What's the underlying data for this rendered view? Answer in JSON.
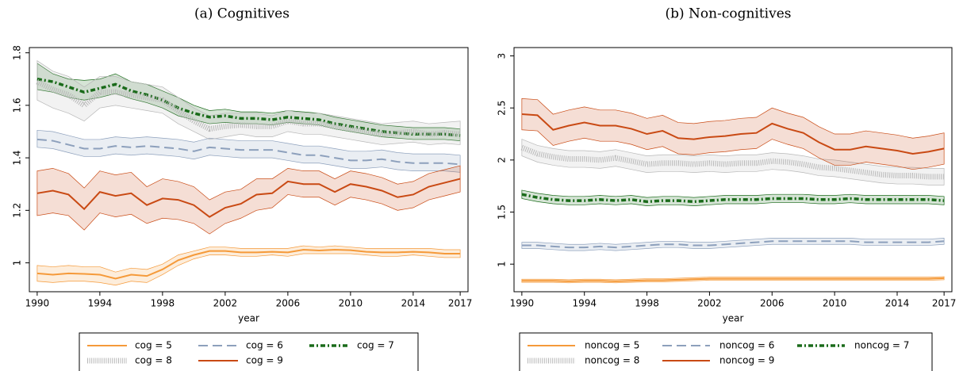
{
  "chart_data": [
    {
      "type": "line",
      "title": "(a) Cognitives",
      "xlabel": "year",
      "x": [
        1990,
        1991,
        1992,
        1993,
        1994,
        1995,
        1996,
        1997,
        1998,
        1999,
        2000,
        2001,
        2002,
        2003,
        2004,
        2005,
        2006,
        2007,
        2008,
        2009,
        2010,
        2011,
        2012,
        2013,
        2014,
        2015,
        2016,
        2017
      ],
      "xlim": [
        1989.5,
        2017.5
      ],
      "xticks": [
        1990,
        1994,
        1998,
        2002,
        2006,
        2010,
        2014,
        2017
      ],
      "ylim": [
        0.89,
        1.82
      ],
      "yticks": [
        1,
        1.2,
        1.4,
        1.6,
        1.8
      ],
      "series": [
        {
          "name": "cog = 5",
          "color": "#f59a3a",
          "style": "solid",
          "values": [
            0.96,
            0.955,
            0.96,
            0.958,
            0.955,
            0.94,
            0.955,
            0.95,
            0.975,
            1.01,
            1.03,
            1.045,
            1.045,
            1.04,
            1.04,
            1.042,
            1.04,
            1.05,
            1.047,
            1.05,
            1.048,
            1.042,
            1.04,
            1.04,
            1.042,
            1.04,
            1.035,
            1.035
          ],
          "lower": [
            0.93,
            0.925,
            0.93,
            0.93,
            0.925,
            0.915,
            0.93,
            0.925,
            0.955,
            0.99,
            1.015,
            1.03,
            1.03,
            1.025,
            1.025,
            1.03,
            1.025,
            1.035,
            1.035,
            1.035,
            1.035,
            1.03,
            1.025,
            1.025,
            1.03,
            1.025,
            1.02,
            1.02
          ],
          "upper": [
            0.99,
            0.985,
            0.99,
            0.985,
            0.985,
            0.965,
            0.98,
            0.975,
            0.995,
            1.03,
            1.045,
            1.06,
            1.06,
            1.055,
            1.055,
            1.055,
            1.055,
            1.065,
            1.06,
            1.065,
            1.06,
            1.055,
            1.055,
            1.055,
            1.055,
            1.055,
            1.05,
            1.05
          ]
        },
        {
          "name": "cog = 6",
          "color": "#8da0bc",
          "style": "dash",
          "values": [
            1.47,
            1.465,
            1.45,
            1.435,
            1.435,
            1.445,
            1.44,
            1.445,
            1.44,
            1.435,
            1.425,
            1.44,
            1.435,
            1.43,
            1.43,
            1.43,
            1.42,
            1.41,
            1.41,
            1.4,
            1.39,
            1.39,
            1.395,
            1.385,
            1.38,
            1.38,
            1.38,
            1.375
          ],
          "lower": [
            1.44,
            1.435,
            1.42,
            1.405,
            1.405,
            1.415,
            1.41,
            1.415,
            1.41,
            1.405,
            1.395,
            1.41,
            1.405,
            1.4,
            1.4,
            1.4,
            1.39,
            1.38,
            1.38,
            1.37,
            1.36,
            1.36,
            1.365,
            1.355,
            1.35,
            1.35,
            1.35,
            1.345
          ],
          "upper": [
            1.505,
            1.5,
            1.485,
            1.47,
            1.47,
            1.48,
            1.475,
            1.48,
            1.475,
            1.47,
            1.46,
            1.475,
            1.47,
            1.465,
            1.465,
            1.465,
            1.455,
            1.445,
            1.445,
            1.435,
            1.425,
            1.425,
            1.43,
            1.42,
            1.415,
            1.415,
            1.415,
            1.41
          ]
        },
        {
          "name": "cog = 7",
          "color": "#1a6b1a",
          "style": "dashdot",
          "values": [
            1.7,
            1.69,
            1.67,
            1.65,
            1.665,
            1.68,
            1.655,
            1.64,
            1.62,
            1.59,
            1.57,
            1.555,
            1.56,
            1.55,
            1.55,
            1.545,
            1.555,
            1.55,
            1.545,
            1.53,
            1.52,
            1.51,
            1.5,
            1.495,
            1.49,
            1.49,
            1.49,
            1.485
          ],
          "lower": [
            1.66,
            1.65,
            1.63,
            1.62,
            1.63,
            1.645,
            1.625,
            1.61,
            1.59,
            1.56,
            1.545,
            1.53,
            1.535,
            1.53,
            1.53,
            1.525,
            1.535,
            1.53,
            1.525,
            1.51,
            1.5,
            1.49,
            1.48,
            1.475,
            1.47,
            1.47,
            1.47,
            1.465
          ],
          "upper": [
            1.76,
            1.72,
            1.7,
            1.695,
            1.7,
            1.72,
            1.69,
            1.68,
            1.655,
            1.63,
            1.6,
            1.58,
            1.585,
            1.575,
            1.575,
            1.57,
            1.58,
            1.575,
            1.57,
            1.555,
            1.545,
            1.535,
            1.525,
            1.52,
            1.515,
            1.515,
            1.515,
            1.51
          ]
        },
        {
          "name": "cog = 8",
          "color": "#b8b8b8",
          "style": "hatch",
          "values": [
            1.69,
            1.66,
            1.64,
            1.6,
            1.65,
            1.65,
            1.64,
            1.63,
            1.62,
            1.58,
            1.54,
            1.51,
            1.52,
            1.525,
            1.52,
            1.52,
            1.54,
            1.53,
            1.53,
            1.52,
            1.51,
            1.5,
            1.49,
            1.495,
            1.5,
            1.49,
            1.495,
            1.49
          ],
          "lower": [
            1.62,
            1.59,
            1.57,
            1.54,
            1.59,
            1.6,
            1.59,
            1.58,
            1.57,
            1.53,
            1.5,
            1.47,
            1.48,
            1.49,
            1.48,
            1.48,
            1.5,
            1.49,
            1.49,
            1.48,
            1.47,
            1.46,
            1.45,
            1.455,
            1.46,
            1.45,
            1.455,
            1.45
          ],
          "upper": [
            1.77,
            1.73,
            1.71,
            1.67,
            1.71,
            1.71,
            1.69,
            1.68,
            1.67,
            1.63,
            1.59,
            1.56,
            1.57,
            1.57,
            1.57,
            1.56,
            1.58,
            1.57,
            1.57,
            1.56,
            1.55,
            1.54,
            1.53,
            1.535,
            1.54,
            1.53,
            1.535,
            1.54
          ]
        },
        {
          "name": "cog = 9",
          "color": "#c94a14",
          "style": "solid",
          "values": [
            1.265,
            1.275,
            1.26,
            1.205,
            1.27,
            1.255,
            1.265,
            1.22,
            1.245,
            1.24,
            1.22,
            1.175,
            1.21,
            1.225,
            1.26,
            1.265,
            1.31,
            1.3,
            1.3,
            1.27,
            1.3,
            1.29,
            1.275,
            1.25,
            1.26,
            1.29,
            1.305,
            1.32
          ],
          "lower": [
            1.18,
            1.19,
            1.18,
            1.125,
            1.19,
            1.175,
            1.185,
            1.15,
            1.17,
            1.165,
            1.15,
            1.11,
            1.15,
            1.17,
            1.2,
            1.21,
            1.26,
            1.25,
            1.25,
            1.22,
            1.25,
            1.24,
            1.225,
            1.2,
            1.21,
            1.24,
            1.255,
            1.27
          ],
          "upper": [
            1.35,
            1.36,
            1.34,
            1.285,
            1.35,
            1.335,
            1.345,
            1.29,
            1.32,
            1.31,
            1.29,
            1.24,
            1.27,
            1.28,
            1.32,
            1.32,
            1.36,
            1.35,
            1.35,
            1.32,
            1.35,
            1.34,
            1.325,
            1.3,
            1.31,
            1.34,
            1.355,
            1.37
          ]
        }
      ]
    },
    {
      "type": "line",
      "title": "(b) Non-cognitives",
      "xlabel": "year",
      "x": [
        1990,
        1991,
        1992,
        1993,
        1994,
        1995,
        1996,
        1997,
        1998,
        1999,
        2000,
        2001,
        2002,
        2003,
        2004,
        2005,
        2006,
        2007,
        2008,
        2009,
        2010,
        2011,
        2012,
        2013,
        2014,
        2015,
        2016,
        2017
      ],
      "xlim": [
        1989.5,
        2017.5
      ],
      "xticks": [
        1990,
        1994,
        1998,
        2002,
        2006,
        2010,
        2014,
        2017
      ],
      "ylim": [
        0.735,
        3.08
      ],
      "yticks": [
        1,
        1.5,
        2,
        2.5,
        3
      ],
      "series": [
        {
          "name": "noncog = 5",
          "color": "#f59a3a",
          "style": "solid",
          "values": [
            0.84,
            0.84,
            0.84,
            0.835,
            0.84,
            0.84,
            0.835,
            0.84,
            0.845,
            0.845,
            0.85,
            0.855,
            0.86,
            0.86,
            0.86,
            0.86,
            0.86,
            0.86,
            0.86,
            0.86,
            0.86,
            0.86,
            0.86,
            0.86,
            0.86,
            0.86,
            0.86,
            0.865
          ],
          "lower": [
            0.825,
            0.825,
            0.825,
            0.82,
            0.825,
            0.825,
            0.82,
            0.825,
            0.83,
            0.83,
            0.835,
            0.84,
            0.845,
            0.845,
            0.845,
            0.845,
            0.845,
            0.845,
            0.845,
            0.845,
            0.845,
            0.845,
            0.845,
            0.845,
            0.845,
            0.845,
            0.845,
            0.85
          ],
          "upper": [
            0.855,
            0.855,
            0.855,
            0.85,
            0.855,
            0.855,
            0.85,
            0.855,
            0.86,
            0.86,
            0.865,
            0.87,
            0.875,
            0.875,
            0.875,
            0.875,
            0.875,
            0.875,
            0.875,
            0.875,
            0.875,
            0.875,
            0.875,
            0.875,
            0.875,
            0.875,
            0.875,
            0.88
          ]
        },
        {
          "name": "noncog = 6",
          "color": "#8da0bc",
          "style": "dash",
          "values": [
            1.18,
            1.18,
            1.17,
            1.16,
            1.16,
            1.17,
            1.16,
            1.17,
            1.18,
            1.19,
            1.19,
            1.18,
            1.18,
            1.19,
            1.2,
            1.21,
            1.22,
            1.22,
            1.22,
            1.22,
            1.22,
            1.22,
            1.21,
            1.21,
            1.21,
            1.21,
            1.21,
            1.22
          ],
          "lower": [
            1.15,
            1.15,
            1.14,
            1.13,
            1.13,
            1.14,
            1.13,
            1.14,
            1.15,
            1.16,
            1.16,
            1.15,
            1.15,
            1.16,
            1.17,
            1.18,
            1.19,
            1.19,
            1.19,
            1.19,
            1.19,
            1.19,
            1.18,
            1.18,
            1.18,
            1.18,
            1.18,
            1.19
          ],
          "upper": [
            1.21,
            1.21,
            1.2,
            1.19,
            1.19,
            1.2,
            1.19,
            1.2,
            1.21,
            1.22,
            1.22,
            1.21,
            1.21,
            1.22,
            1.23,
            1.24,
            1.25,
            1.25,
            1.25,
            1.25,
            1.25,
            1.25,
            1.24,
            1.24,
            1.24,
            1.24,
            1.24,
            1.25
          ]
        },
        {
          "name": "noncog = 7",
          "color": "#1a6b1a",
          "style": "dashdot",
          "values": [
            1.67,
            1.64,
            1.62,
            1.61,
            1.61,
            1.62,
            1.61,
            1.62,
            1.6,
            1.61,
            1.61,
            1.6,
            1.61,
            1.62,
            1.62,
            1.62,
            1.63,
            1.63,
            1.63,
            1.62,
            1.62,
            1.63,
            1.62,
            1.62,
            1.62,
            1.62,
            1.62,
            1.61
          ],
          "lower": [
            1.63,
            1.6,
            1.58,
            1.57,
            1.57,
            1.58,
            1.57,
            1.58,
            1.56,
            1.57,
            1.57,
            1.56,
            1.57,
            1.58,
            1.58,
            1.58,
            1.59,
            1.59,
            1.59,
            1.58,
            1.58,
            1.59,
            1.58,
            1.58,
            1.58,
            1.58,
            1.58,
            1.57
          ],
          "upper": [
            1.71,
            1.68,
            1.66,
            1.65,
            1.65,
            1.66,
            1.65,
            1.66,
            1.64,
            1.65,
            1.65,
            1.64,
            1.65,
            1.66,
            1.66,
            1.66,
            1.67,
            1.67,
            1.67,
            1.66,
            1.66,
            1.67,
            1.66,
            1.66,
            1.66,
            1.66,
            1.66,
            1.65
          ]
        },
        {
          "name": "noncog = 8",
          "color": "#b8b8b8",
          "style": "hatch",
          "values": [
            2.12,
            2.06,
            2.03,
            2.01,
            2.01,
            2.0,
            2.02,
            1.99,
            1.96,
            1.97,
            1.97,
            1.96,
            1.97,
            1.96,
            1.97,
            1.97,
            1.99,
            1.98,
            1.96,
            1.93,
            1.92,
            1.9,
            1.88,
            1.86,
            1.85,
            1.85,
            1.84,
            1.84
          ],
          "lower": [
            2.04,
            1.98,
            1.95,
            1.93,
            1.93,
            1.92,
            1.94,
            1.91,
            1.88,
            1.89,
            1.89,
            1.88,
            1.89,
            1.88,
            1.89,
            1.89,
            1.91,
            1.9,
            1.88,
            1.85,
            1.84,
            1.82,
            1.8,
            1.78,
            1.77,
            1.77,
            1.76,
            1.76
          ],
          "upper": [
            2.2,
            2.14,
            2.11,
            2.09,
            2.09,
            2.08,
            2.1,
            2.07,
            2.04,
            2.05,
            2.05,
            2.04,
            2.05,
            2.04,
            2.05,
            2.05,
            2.07,
            2.06,
            2.04,
            2.01,
            2.0,
            1.98,
            1.96,
            1.94,
            1.93,
            1.93,
            1.92,
            1.92
          ]
        },
        {
          "name": "noncog = 9",
          "color": "#c94a14",
          "style": "solid",
          "values": [
            2.44,
            2.43,
            2.29,
            2.33,
            2.36,
            2.33,
            2.33,
            2.3,
            2.25,
            2.28,
            2.21,
            2.2,
            2.22,
            2.23,
            2.25,
            2.26,
            2.35,
            2.3,
            2.26,
            2.17,
            2.1,
            2.1,
            2.13,
            2.11,
            2.09,
            2.06,
            2.08,
            2.11
          ],
          "lower": [
            2.29,
            2.28,
            2.14,
            2.18,
            2.21,
            2.18,
            2.18,
            2.15,
            2.1,
            2.13,
            2.06,
            2.05,
            2.07,
            2.08,
            2.1,
            2.11,
            2.2,
            2.15,
            2.11,
            2.02,
            1.95,
            1.95,
            1.98,
            1.96,
            1.94,
            1.91,
            1.93,
            1.96
          ],
          "upper": [
            2.59,
            2.58,
            2.44,
            2.48,
            2.51,
            2.48,
            2.48,
            2.45,
            2.4,
            2.43,
            2.36,
            2.35,
            2.37,
            2.38,
            2.4,
            2.41,
            2.5,
            2.45,
            2.41,
            2.32,
            2.25,
            2.25,
            2.28,
            2.26,
            2.24,
            2.21,
            2.23,
            2.26
          ]
        }
      ]
    }
  ]
}
